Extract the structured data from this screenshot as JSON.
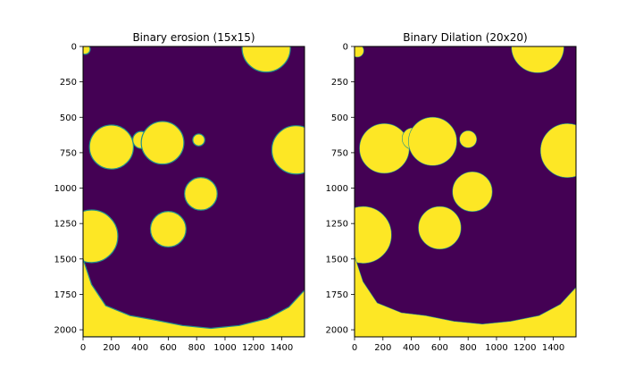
{
  "chart_data": [
    {
      "type": "heatmap",
      "title": "Binary erosion (15x15)",
      "xlabel": "",
      "ylabel": "",
      "xlim": [
        0,
        1560
      ],
      "ylim": [
        2050,
        0
      ],
      "xticks": [
        0,
        200,
        400,
        600,
        800,
        1000,
        1200,
        1400
      ],
      "yticks": [
        0,
        250,
        500,
        750,
        1000,
        1250,
        1500,
        1750,
        2000
      ],
      "grid": false,
      "colors": {
        "background": "#440154",
        "foreground": "#fde725",
        "edge": "#21918c"
      },
      "regions": [
        {
          "shape": "circle",
          "cx": 1290,
          "cy": 10,
          "r": 170
        },
        {
          "shape": "circle",
          "cx": 200,
          "cy": 710,
          "r": 155
        },
        {
          "shape": "circle",
          "cx": 410,
          "cy": 660,
          "r": 60
        },
        {
          "shape": "circle",
          "cx": 560,
          "cy": 680,
          "r": 150
        },
        {
          "shape": "circle",
          "cx": 815,
          "cy": 660,
          "r": 42
        },
        {
          "shape": "circle",
          "cx": 1500,
          "cy": 730,
          "r": 170
        },
        {
          "shape": "circle",
          "cx": 830,
          "cy": 1040,
          "r": 115
        },
        {
          "shape": "circle",
          "cx": 600,
          "cy": 1290,
          "r": 125
        },
        {
          "shape": "circle",
          "cx": 60,
          "cy": 1340,
          "r": 185
        },
        {
          "shape": "polygon",
          "points": [
            [
              0,
              1500
            ],
            [
              60,
              1680
            ],
            [
              160,
              1830
            ],
            [
              330,
              1900
            ],
            [
              500,
              1930
            ],
            [
              700,
              1970
            ],
            [
              900,
              1990
            ],
            [
              1100,
              1970
            ],
            [
              1300,
              1920
            ],
            [
              1450,
              1840
            ],
            [
              1560,
              1720
            ],
            [
              1560,
              2050
            ],
            [
              0,
              2050
            ]
          ]
        },
        {
          "shape": "circle",
          "cx": 15,
          "cy": 20,
          "r": 35
        }
      ]
    },
    {
      "type": "heatmap",
      "title": "Binary Dilation (20x20)",
      "xlabel": "",
      "ylabel": "",
      "xlim": [
        0,
        1560
      ],
      "ylim": [
        2050,
        0
      ],
      "xticks": [
        0,
        200,
        400,
        600,
        800,
        1000,
        1200,
        1400
      ],
      "yticks": [
        0,
        250,
        500,
        750,
        1000,
        1250,
        1500,
        1750,
        2000
      ],
      "grid": false,
      "colors": {
        "background": "#440154",
        "foreground": "#fde725",
        "edge": "#21918c"
      },
      "regions": [
        {
          "shape": "circle",
          "cx": 1290,
          "cy": 0,
          "r": 185
        },
        {
          "shape": "circle",
          "cx": 210,
          "cy": 720,
          "r": 175
        },
        {
          "shape": "circle",
          "cx": 410,
          "cy": 650,
          "r": 75
        },
        {
          "shape": "circle",
          "cx": 550,
          "cy": 670,
          "r": 170
        },
        {
          "shape": "circle",
          "cx": 800,
          "cy": 655,
          "r": 60
        },
        {
          "shape": "circle",
          "cx": 1500,
          "cy": 735,
          "r": 190
        },
        {
          "shape": "circle",
          "cx": 830,
          "cy": 1025,
          "r": 140
        },
        {
          "shape": "circle",
          "cx": 600,
          "cy": 1280,
          "r": 150
        },
        {
          "shape": "circle",
          "cx": 60,
          "cy": 1330,
          "r": 200
        },
        {
          "shape": "polygon",
          "points": [
            [
              0,
              1480
            ],
            [
              60,
              1660
            ],
            [
              160,
              1810
            ],
            [
              330,
              1880
            ],
            [
              500,
              1900
            ],
            [
              700,
              1940
            ],
            [
              900,
              1960
            ],
            [
              1100,
              1940
            ],
            [
              1300,
              1900
            ],
            [
              1450,
              1820
            ],
            [
              1560,
              1700
            ],
            [
              1560,
              2050
            ],
            [
              0,
              2050
            ]
          ]
        },
        {
          "shape": "circle",
          "cx": 20,
          "cy": 30,
          "r": 45
        }
      ]
    }
  ]
}
